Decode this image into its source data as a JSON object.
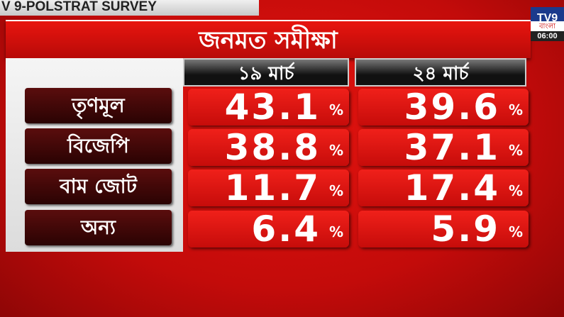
{
  "banner": "V 9-POLSTRAT SURVEY",
  "title": "জনমত সমীক্ষা",
  "channel": {
    "logo": "TV9",
    "subtitle": "বাংলা",
    "time": "06:00"
  },
  "columns": [
    "১৯ মার্চ",
    "২৪ মার্চ"
  ],
  "rows": [
    {
      "label": "তৃণমূল",
      "values": [
        "43.1",
        "39.6"
      ]
    },
    {
      "label": "বিজেপি",
      "values": [
        "38.8",
        "37.1"
      ]
    },
    {
      "label": "বাম জোট",
      "values": [
        "11.7",
        "17.4"
      ]
    },
    {
      "label": "অন্য",
      "values": [
        "6.4",
        "5.9"
      ]
    }
  ],
  "unit": "%",
  "colors": {
    "background": "#d0100c",
    "label_box": "#3a0606",
    "value_box": "#e0140f"
  }
}
